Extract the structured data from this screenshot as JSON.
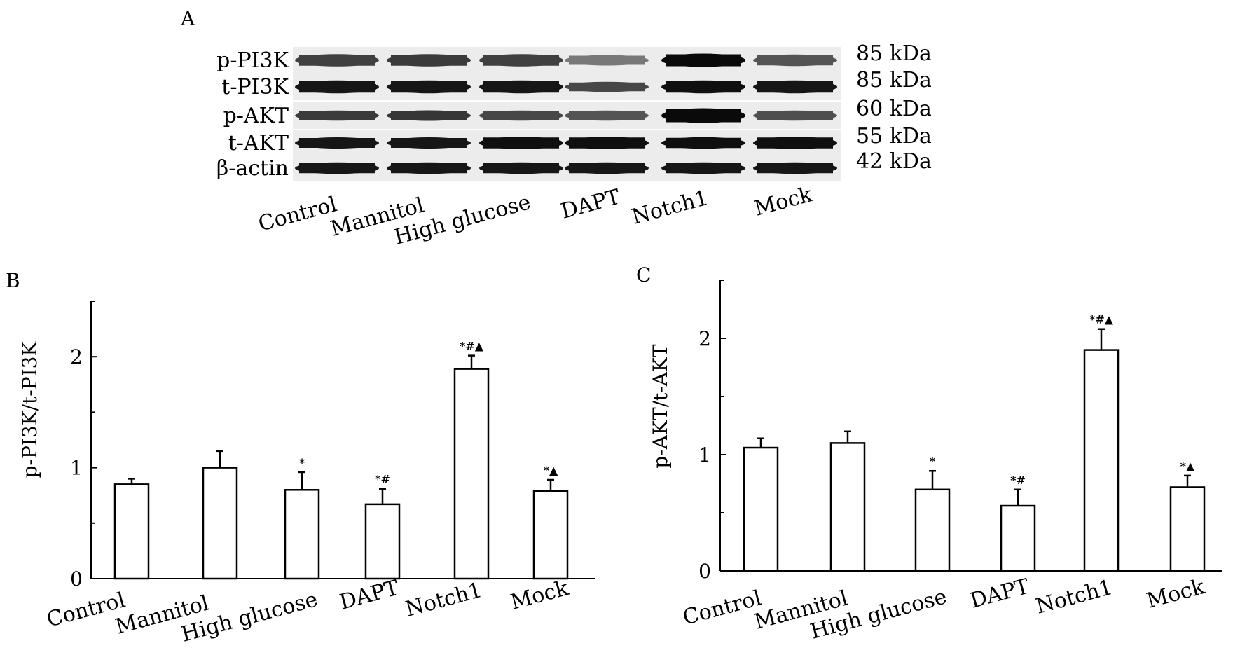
{
  "panel_a": {
    "letter": "A",
    "rows": [
      {
        "label": "p-PI3K",
        "kda": "85 kDa",
        "intensities": [
          0.78,
          0.8,
          0.78,
          0.55,
          1.0,
          0.7
        ],
        "thickness": [
          0.85,
          0.85,
          0.85,
          0.6,
          1.0,
          0.75
        ]
      },
      {
        "label": "t-PI3K",
        "kda": "85 kDa",
        "intensities": [
          0.95,
          0.95,
          0.95,
          0.75,
          0.98,
          0.95
        ],
        "thickness": [
          0.95,
          0.95,
          0.95,
          0.55,
          0.95,
          0.95
        ]
      },
      {
        "label": "p-AKT",
        "kda": "60 kDa",
        "intensities": [
          0.8,
          0.82,
          0.75,
          0.7,
          1.0,
          0.72
        ],
        "thickness": [
          0.55,
          0.6,
          0.55,
          0.55,
          1.2,
          0.55
        ]
      },
      {
        "label": "t-AKT",
        "kda": "55 kDa",
        "intensities": [
          0.95,
          0.95,
          0.98,
          0.98,
          0.98,
          0.98
        ],
        "thickness": [
          0.7,
          0.7,
          0.85,
          0.85,
          0.75,
          0.85
        ]
      },
      {
        "label": "β-actin",
        "kda": "42 kDa",
        "intensities": [
          0.95,
          0.95,
          0.95,
          0.95,
          0.95,
          0.95
        ],
        "thickness": [
          0.75,
          0.75,
          0.75,
          0.75,
          0.75,
          0.75
        ]
      }
    ],
    "lanes": [
      "Control",
      "Mannitol",
      "High glucose",
      "DAPT",
      "Notch1",
      "Mock"
    ]
  },
  "chart_data": [
    {
      "panel": "B",
      "type": "bar",
      "categories": [
        "Control",
        "Mannitol",
        "High glucose",
        "DAPT",
        "Notch1",
        "Mock"
      ],
      "values": [
        0.85,
        1.0,
        0.8,
        0.67,
        1.89,
        0.79
      ],
      "errors": [
        0.05,
        0.15,
        0.16,
        0.14,
        0.12,
        0.1
      ],
      "annotations": [
        "",
        "",
        "*",
        "*#",
        "*#▲",
        "*▲"
      ],
      "xlabel": "",
      "ylabel": "p-PI3K/t-PI3K",
      "ylim": [
        0,
        2.5
      ],
      "major_ticks": [
        0,
        1,
        2
      ],
      "minor_ticks": [
        0.5,
        1.5,
        2.5
      ],
      "bar_color": "#ffffff",
      "edge_color": "#000000"
    },
    {
      "panel": "C",
      "type": "bar",
      "categories": [
        "Control",
        "Mannitol",
        "High glucose",
        "DAPT",
        "Notch1",
        "Mock"
      ],
      "values": [
        1.06,
        1.1,
        0.7,
        0.56,
        1.9,
        0.72
      ],
      "errors": [
        0.08,
        0.1,
        0.16,
        0.14,
        0.18,
        0.1
      ],
      "annotations": [
        "",
        "",
        "*",
        "*#",
        "*#▲",
        "*▲"
      ],
      "xlabel": "",
      "ylabel": "p-AKT/t-AKT",
      "ylim": [
        0,
        2.5
      ],
      "major_ticks": [
        0,
        1,
        2
      ],
      "minor_ticks": [
        0.5,
        1.5,
        2.5
      ],
      "bar_color": "#ffffff",
      "edge_color": "#000000"
    }
  ]
}
